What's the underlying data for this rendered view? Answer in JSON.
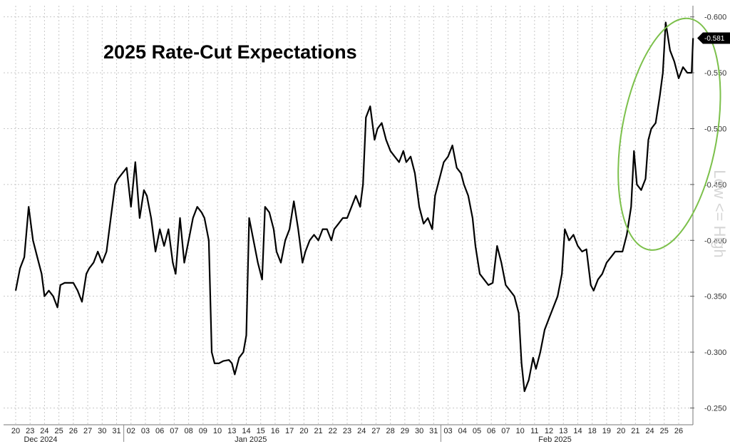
{
  "chart_data": {
    "type": "line",
    "title": "2025 Rate-Cut Expectations",
    "side_label": "Low <= High",
    "ylim": [
      0.235,
      0.61
    ],
    "y_ticks": [
      0.25,
      0.3,
      0.35,
      0.4,
      0.45,
      0.5,
      0.55,
      0.6
    ],
    "y_tick_labels": [
      "-0.250",
      "-0.300",
      "-0.350",
      "-0.400",
      "-0.450",
      "-0.500",
      "-0.550",
      "-0.600"
    ],
    "last_value_label": "-0.581",
    "last_value": 0.581,
    "x_tick_labels": [
      "20",
      "23",
      "24",
      "25",
      "26",
      "27",
      "30",
      "31",
      "02",
      "03",
      "06",
      "07",
      "08",
      "09",
      "10",
      "13",
      "14",
      "15",
      "16",
      "17",
      "20",
      "21",
      "22",
      "23",
      "24",
      "27",
      "28",
      "29",
      "30",
      "31",
      "03",
      "04",
      "05",
      "06",
      "07",
      "10",
      "11",
      "12",
      "13",
      "14",
      "18",
      "19",
      "20",
      "21",
      "24",
      "25",
      "26"
    ],
    "month_labels": [
      "Dec 2024",
      "Jan 2025",
      "Feb 2025"
    ],
    "grid": true,
    "line_color": "#000000",
    "highlight_color": "#7cc04b",
    "series": [
      {
        "values": [
          [
            0.0,
            0.355
          ],
          [
            0.3,
            0.375
          ],
          [
            0.6,
            0.385
          ],
          [
            0.9,
            0.43
          ],
          [
            1.2,
            0.4
          ],
          [
            1.5,
            0.385
          ],
          [
            1.8,
            0.37
          ],
          [
            2.0,
            0.35
          ],
          [
            2.3,
            0.355
          ],
          [
            2.6,
            0.35
          ],
          [
            2.9,
            0.34
          ],
          [
            3.1,
            0.36
          ],
          [
            3.4,
            0.362
          ],
          [
            3.7,
            0.362
          ],
          [
            4.0,
            0.362
          ],
          [
            4.3,
            0.355
          ],
          [
            4.6,
            0.345
          ],
          [
            4.9,
            0.37
          ],
          [
            5.1,
            0.375
          ],
          [
            5.4,
            0.38
          ],
          [
            5.7,
            0.39
          ],
          [
            6.0,
            0.38
          ],
          [
            6.3,
            0.39
          ],
          [
            6.6,
            0.42
          ],
          [
            6.9,
            0.45
          ],
          [
            7.1,
            0.455
          ],
          [
            7.4,
            0.46
          ],
          [
            7.7,
            0.465
          ],
          [
            8.0,
            0.43
          ],
          [
            8.3,
            0.47
          ],
          [
            8.6,
            0.42
          ],
          [
            8.9,
            0.445
          ],
          [
            9.1,
            0.44
          ],
          [
            9.4,
            0.42
          ],
          [
            9.7,
            0.39
          ],
          [
            10.0,
            0.41
          ],
          [
            10.3,
            0.395
          ],
          [
            10.6,
            0.41
          ],
          [
            10.9,
            0.38
          ],
          [
            11.1,
            0.37
          ],
          [
            11.4,
            0.42
          ],
          [
            11.7,
            0.38
          ],
          [
            12.0,
            0.4
          ],
          [
            12.3,
            0.42
          ],
          [
            12.6,
            0.43
          ],
          [
            12.9,
            0.425
          ],
          [
            13.1,
            0.42
          ],
          [
            13.4,
            0.4
          ],
          [
            13.6,
            0.3
          ],
          [
            13.8,
            0.29
          ],
          [
            14.1,
            0.29
          ],
          [
            14.4,
            0.292
          ],
          [
            14.8,
            0.293
          ],
          [
            15.0,
            0.29
          ],
          [
            15.2,
            0.28
          ],
          [
            15.5,
            0.295
          ],
          [
            15.8,
            0.3
          ],
          [
            16.0,
            0.315
          ],
          [
            16.2,
            0.42
          ],
          [
            16.5,
            0.4
          ],
          [
            16.8,
            0.38
          ],
          [
            17.1,
            0.365
          ],
          [
            17.3,
            0.43
          ],
          [
            17.6,
            0.425
          ],
          [
            17.9,
            0.41
          ],
          [
            18.1,
            0.39
          ],
          [
            18.4,
            0.38
          ],
          [
            18.7,
            0.4
          ],
          [
            19.0,
            0.41
          ],
          [
            19.3,
            0.435
          ],
          [
            19.6,
            0.41
          ],
          [
            19.9,
            0.38
          ],
          [
            20.1,
            0.39
          ],
          [
            20.4,
            0.4
          ],
          [
            20.7,
            0.405
          ],
          [
            21.0,
            0.4
          ],
          [
            21.3,
            0.41
          ],
          [
            21.6,
            0.41
          ],
          [
            21.9,
            0.4
          ],
          [
            22.1,
            0.41
          ],
          [
            22.4,
            0.415
          ],
          [
            22.7,
            0.42
          ],
          [
            23.0,
            0.42
          ],
          [
            23.3,
            0.43
          ],
          [
            23.6,
            0.44
          ],
          [
            23.9,
            0.43
          ],
          [
            24.1,
            0.45
          ],
          [
            24.3,
            0.51
          ],
          [
            24.6,
            0.52
          ],
          [
            24.9,
            0.49
          ],
          [
            25.1,
            0.5
          ],
          [
            25.4,
            0.505
          ],
          [
            25.7,
            0.49
          ],
          [
            26.0,
            0.48
          ],
          [
            26.3,
            0.475
          ],
          [
            26.6,
            0.47
          ],
          [
            26.9,
            0.48
          ],
          [
            27.1,
            0.47
          ],
          [
            27.4,
            0.475
          ],
          [
            27.7,
            0.46
          ],
          [
            28.0,
            0.43
          ],
          [
            28.3,
            0.415
          ],
          [
            28.6,
            0.42
          ],
          [
            28.9,
            0.41
          ],
          [
            29.1,
            0.44
          ],
          [
            29.4,
            0.455
          ],
          [
            29.7,
            0.47
          ],
          [
            30.0,
            0.475
          ],
          [
            30.3,
            0.485
          ],
          [
            30.6,
            0.465
          ],
          [
            30.9,
            0.46
          ],
          [
            31.1,
            0.45
          ],
          [
            31.4,
            0.44
          ],
          [
            31.7,
            0.42
          ],
          [
            31.9,
            0.395
          ],
          [
            32.2,
            0.37
          ],
          [
            32.5,
            0.365
          ],
          [
            32.8,
            0.36
          ],
          [
            33.1,
            0.362
          ],
          [
            33.4,
            0.395
          ],
          [
            33.7,
            0.38
          ],
          [
            34.0,
            0.36
          ],
          [
            34.3,
            0.355
          ],
          [
            34.6,
            0.35
          ],
          [
            34.9,
            0.335
          ],
          [
            35.1,
            0.29
          ],
          [
            35.3,
            0.265
          ],
          [
            35.6,
            0.275
          ],
          [
            35.9,
            0.295
          ],
          [
            36.1,
            0.285
          ],
          [
            36.4,
            0.3
          ],
          [
            36.7,
            0.32
          ],
          [
            37.0,
            0.33
          ],
          [
            37.3,
            0.34
          ],
          [
            37.6,
            0.35
          ],
          [
            37.9,
            0.37
          ],
          [
            38.1,
            0.41
          ],
          [
            38.4,
            0.4
          ],
          [
            38.7,
            0.405
          ],
          [
            39.0,
            0.395
          ],
          [
            39.3,
            0.39
          ],
          [
            39.6,
            0.392
          ],
          [
            39.9,
            0.36
          ],
          [
            40.1,
            0.355
          ],
          [
            40.4,
            0.365
          ],
          [
            40.7,
            0.37
          ],
          [
            41.0,
            0.38
          ],
          [
            41.3,
            0.385
          ],
          [
            41.6,
            0.39
          ],
          [
            41.9,
            0.39
          ],
          [
            42.1,
            0.39
          ],
          [
            42.4,
            0.405
          ],
          [
            42.7,
            0.43
          ],
          [
            42.9,
            0.48
          ],
          [
            43.1,
            0.45
          ],
          [
            43.4,
            0.445
          ],
          [
            43.7,
            0.455
          ],
          [
            43.9,
            0.49
          ],
          [
            44.1,
            0.5
          ],
          [
            44.4,
            0.505
          ],
          [
            44.7,
            0.53
          ],
          [
            44.9,
            0.55
          ],
          [
            45.1,
            0.595
          ],
          [
            45.4,
            0.57
          ],
          [
            45.7,
            0.56
          ],
          [
            46.0,
            0.545
          ],
          [
            46.3,
            0.555
          ],
          [
            46.6,
            0.55
          ],
          [
            46.9,
            0.55
          ],
          [
            47.0,
            0.581
          ]
        ]
      }
    ],
    "highlight": {
      "center": [
        45.35,
        0.495
      ],
      "radius": [
        3.3,
        0.105
      ]
    }
  }
}
